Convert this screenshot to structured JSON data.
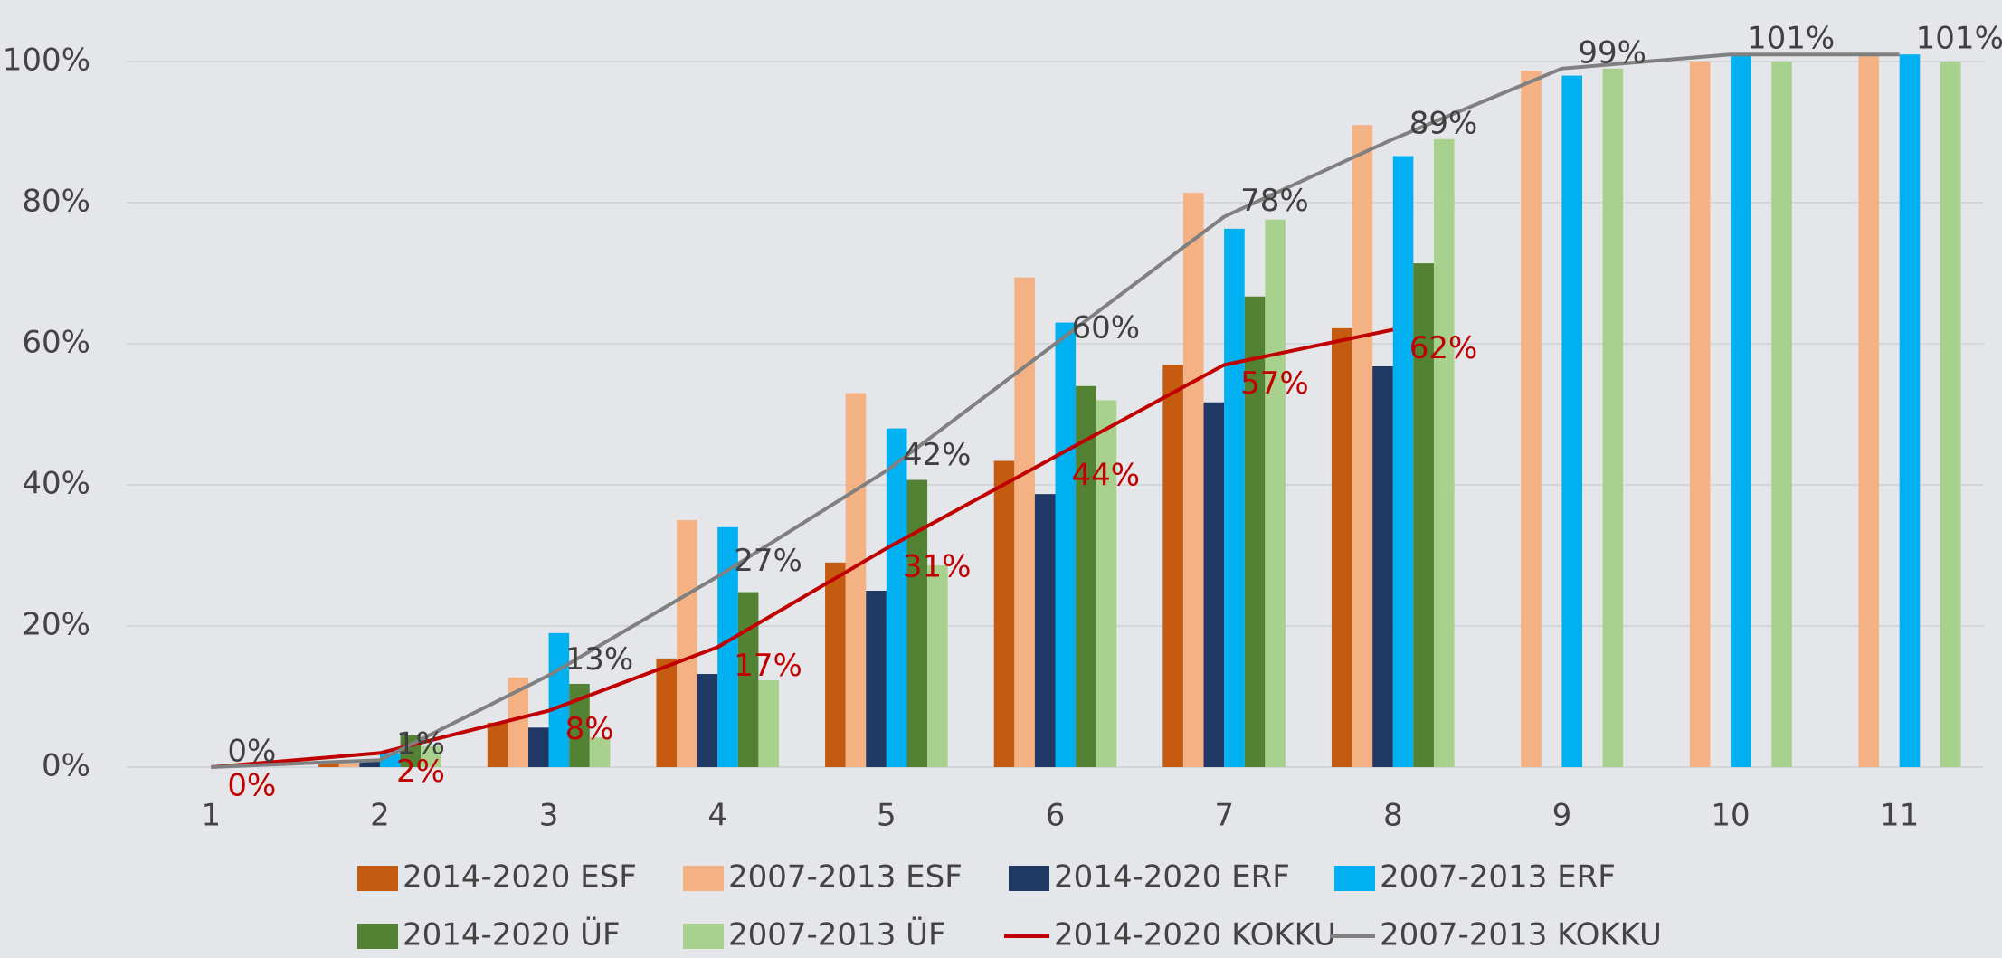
{
  "chart_data": {
    "type": "bar",
    "categories": [
      "1",
      "2",
      "3",
      "4",
      "5",
      "6",
      "7",
      "8",
      "9",
      "10",
      "11"
    ],
    "ylim": [
      0,
      108
    ],
    "yticks": [
      {
        "value": 0,
        "label": "0%"
      },
      {
        "value": 20,
        "label": "20%"
      },
      {
        "value": 40,
        "label": "40%"
      },
      {
        "value": 60,
        "label": "60%"
      },
      {
        "value": 80,
        "label": "80%"
      },
      {
        "value": 100,
        "label": "100%"
      }
    ],
    "grid": true,
    "legend": "bottom",
    "series": [
      {
        "name": "2014-2020 ESF",
        "type": "bar",
        "color": "#c55a11",
        "values": [
          0,
          0.5,
          6.3,
          15.4,
          29,
          43.4,
          57,
          62.2,
          null,
          null,
          null
        ]
      },
      {
        "name": "2007-2013 ESF",
        "type": "bar",
        "color": "#f4b183",
        "values": [
          0,
          0.5,
          12.7,
          35,
          53,
          69.4,
          81.4,
          91,
          98.7,
          100,
          101
        ]
      },
      {
        "name": "2014-2020 ERF",
        "type": "bar",
        "color": "#1f3864",
        "values": [
          0,
          1,
          5.6,
          13.2,
          25,
          38.7,
          51.7,
          56.8,
          null,
          null,
          null
        ]
      },
      {
        "name": "2007-2013 ERF",
        "type": "bar",
        "color": "#00b0f0",
        "values": [
          0,
          2,
          19,
          34,
          48,
          63,
          76.3,
          86.6,
          98,
          101,
          101
        ]
      },
      {
        "name": "2014-2020 ÜF",
        "type": "bar",
        "color": "#548235",
        "values": [
          0,
          4.5,
          11.8,
          24.8,
          40.7,
          54,
          66.7,
          71.4,
          null,
          null,
          null
        ]
      },
      {
        "name": "2007-2013 ÜF",
        "type": "bar",
        "color": "#a9d18e",
        "values": [
          0,
          3,
          4.2,
          12.3,
          28.6,
          52,
          77.6,
          89,
          99,
          100,
          100
        ]
      },
      {
        "name": "2014-2020 KOKKU",
        "type": "line",
        "color": "#c00000",
        "values": [
          0,
          2,
          8,
          17,
          31,
          44,
          57,
          62,
          null,
          null,
          null
        ],
        "value_labels": [
          "0%",
          "2%",
          "8%",
          "17%",
          "31%",
          "44%",
          "57%",
          "62%",
          null,
          null,
          null
        ]
      },
      {
        "name": "2007-2013 KOKKU",
        "type": "line",
        "color": "#808080",
        "values": [
          0,
          1,
          13,
          27,
          42,
          60,
          78,
          89,
          99,
          101,
          101
        ],
        "value_labels": [
          "0%",
          "1%",
          "13%",
          "27%",
          "42%",
          "60%",
          "78%",
          "89%",
          "99%",
          "101%",
          "101%"
        ]
      }
    ]
  }
}
